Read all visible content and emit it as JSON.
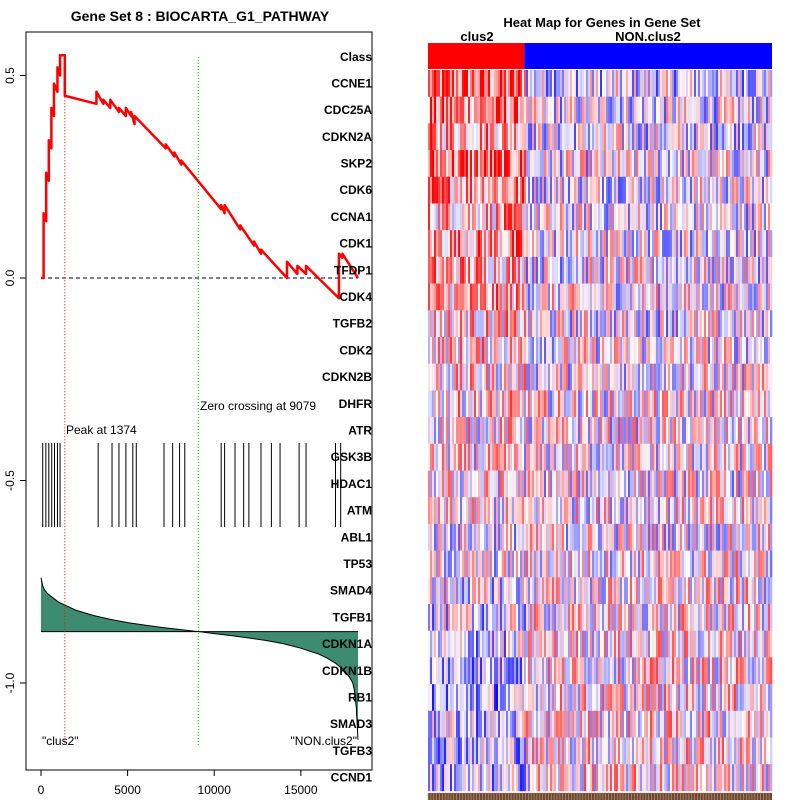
{
  "chart_data": [
    {
      "type": "line",
      "title": "Gene Set  8 : BIOCARTA_G1_PATHWAY",
      "x_ticks": [
        "0",
        "5000",
        "10000",
        "15000"
      ],
      "y_ticks": [
        "0.5",
        "0.0",
        "-0.5",
        "-1.0"
      ],
      "xlim": [
        0,
        18500
      ],
      "ylim": [
        -1.2,
        0.6
      ],
      "series": [
        {
          "name": "running enrichment score",
          "color": "#ff0000",
          "x": [
            0,
            150,
            150,
            300,
            300,
            450,
            450,
            600,
            600,
            750,
            750,
            950,
            950,
            1100,
            1100,
            1374,
            1374,
            3200,
            3200,
            3600,
            3600,
            4000,
            4000,
            4500,
            4500,
            4900,
            4900,
            5200,
            5200,
            5400,
            5400,
            7200,
            7200,
            7700,
            7700,
            8100,
            8100,
            10400,
            10400,
            10600,
            10600,
            11500,
            11500,
            12300,
            12300,
            12700,
            12700,
            14200,
            14200,
            14800,
            14800,
            15300,
            15300,
            17200,
            17200,
            17400,
            17400,
            18300
          ],
          "y": [
            0.0,
            0.0,
            0.16,
            0.14,
            0.26,
            0.24,
            0.34,
            0.32,
            0.42,
            0.4,
            0.48,
            0.46,
            0.52,
            0.5,
            0.55,
            0.55,
            0.45,
            0.43,
            0.46,
            0.43,
            0.44,
            0.42,
            0.44,
            0.41,
            0.42,
            0.4,
            0.42,
            0.4,
            0.41,
            0.38,
            0.4,
            0.32,
            0.33,
            0.3,
            0.31,
            0.28,
            0.29,
            0.17,
            0.18,
            0.16,
            0.18,
            0.12,
            0.13,
            0.08,
            0.09,
            0.06,
            0.07,
            0.0,
            0.04,
            0.01,
            0.03,
            0.01,
            0.03,
            -0.05,
            0.06,
            0.05,
            0.06,
            0.0
          ]
        }
      ],
      "reference_lines": {
        "peak_x": 1374,
        "zero_crossing_x": 9079,
        "baseline_y": 0.0
      },
      "hit_positions": [
        100,
        280,
        450,
        620,
        780,
        950,
        1100,
        3300,
        4100,
        4500,
        4900,
        5300,
        5500,
        7100,
        7600,
        8000,
        8300,
        10400,
        10600,
        11200,
        11700,
        12000,
        12700,
        13300,
        13800,
        14900,
        15300,
        17000,
        17300
      ],
      "ranked_metric": {
        "x": [
          0,
          100,
          200,
          400,
          700,
          1000,
          1500,
          2000,
          3000,
          4000,
          5000,
          6000,
          7000,
          8000,
          9079,
          10000,
          11000,
          12000,
          13000,
          14000,
          15000,
          16000,
          16500,
          17000,
          17500,
          17800,
          18000,
          18100,
          18200,
          18300
        ],
        "y": [
          -0.74,
          -0.76,
          -0.77,
          -0.78,
          -0.79,
          -0.8,
          -0.81,
          -0.82,
          -0.833,
          -0.843,
          -0.851,
          -0.857,
          -0.863,
          -0.868,
          -0.873,
          -0.878,
          -0.883,
          -0.889,
          -0.895,
          -0.903,
          -0.914,
          -0.928,
          -0.938,
          -0.951,
          -0.969,
          -0.985,
          -1.0,
          -1.02,
          -1.06,
          -1.14
        ],
        "fill_color": "#3d8b70"
      },
      "annotations": [
        {
          "text": "Peak at 1374"
        },
        {
          "text": "Zero crossing at 9079"
        },
        {
          "text": "\"clus2\""
        },
        {
          "text": "\"NON.clus2\""
        }
      ]
    },
    {
      "type": "heatmap",
      "title": "Heat Map for Genes in Gene Set",
      "class_label": "Class",
      "classes": [
        {
          "name": "clus2",
          "color": "#ff0000",
          "fraction": 0.28
        },
        {
          "name": "NON.clus2",
          "color": "#0000ff",
          "fraction": 0.72
        }
      ],
      "rows": [
        "CCNE1",
        "CDC25A",
        "CDKN2A",
        "SKP2",
        "CDK6",
        "CCNA1",
        "CDK1",
        "TFDP1",
        "CDK4",
        "TGFB2",
        "CDK2",
        "CDKN2B",
        "DHFR",
        "ATR",
        "GSK3B",
        "HDAC1",
        "ATM",
        "ABL1",
        "TP53",
        "SMAD4",
        "TGFB1",
        "CDKN1A",
        "CDKN1B",
        "RB1",
        "SMAD3",
        "TGFB3",
        "CCND1"
      ],
      "row_bias_clus2": [
        0.55,
        0.5,
        0.4,
        0.55,
        0.45,
        0.3,
        0.4,
        0.35,
        0.3,
        0.2,
        0.2,
        0.1,
        0.15,
        0.1,
        0.05,
        0.05,
        0.0,
        -0.05,
        -0.05,
        -0.1,
        -0.15,
        -0.2,
        -0.25,
        -0.3,
        -0.2,
        -0.2,
        -0.25
      ],
      "row_bias_other": [
        -0.15,
        -0.1,
        -0.1,
        -0.05,
        -0.05,
        -0.05,
        -0.05,
        -0.05,
        0.0,
        -0.05,
        0.0,
        0.0,
        0.05,
        0.0,
        0.0,
        0.0,
        0.05,
        0.0,
        0.05,
        0.05,
        0.05,
        0.1,
        0.1,
        0.1,
        0.1,
        0.1,
        0.1
      ]
    }
  ]
}
